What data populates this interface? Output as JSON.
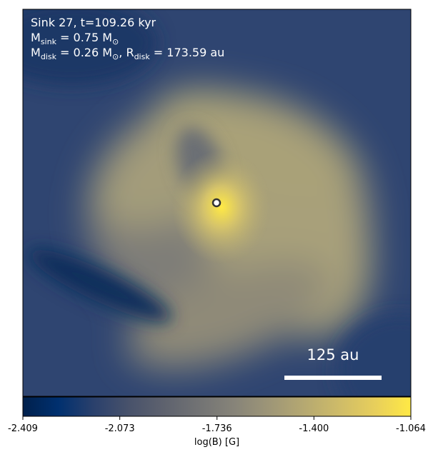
{
  "chart_data": {
    "type": "image",
    "annotations": [
      [
        {
          "text": "Sink 27, t=109.26 kyr"
        }
      ],
      [
        {
          "text": "M"
        },
        {
          "text": "sink",
          "sub": true
        },
        {
          "text": " = 0.75 M"
        },
        {
          "text": "⊙",
          "sub": true
        }
      ],
      [
        {
          "text": "M"
        },
        {
          "text": "disk",
          "sub": true
        },
        {
          "text": " = 0.26 M"
        },
        {
          "text": "⊙",
          "sub": true
        },
        {
          "text": ", R"
        },
        {
          "text": "disk",
          "sub": true
        },
        {
          "text": " = 173.59 au"
        }
      ]
    ],
    "scale_bar_label": "125 au",
    "colormap": "cividis",
    "colorbar_label": "log(B) [G]",
    "clim": [
      -2.409,
      -1.064
    ],
    "cticks": [
      -2.409,
      -2.073,
      -1.736,
      {
        "value": -1.4,
        "label": "-1.400"
      },
      -1.064
    ]
  }
}
